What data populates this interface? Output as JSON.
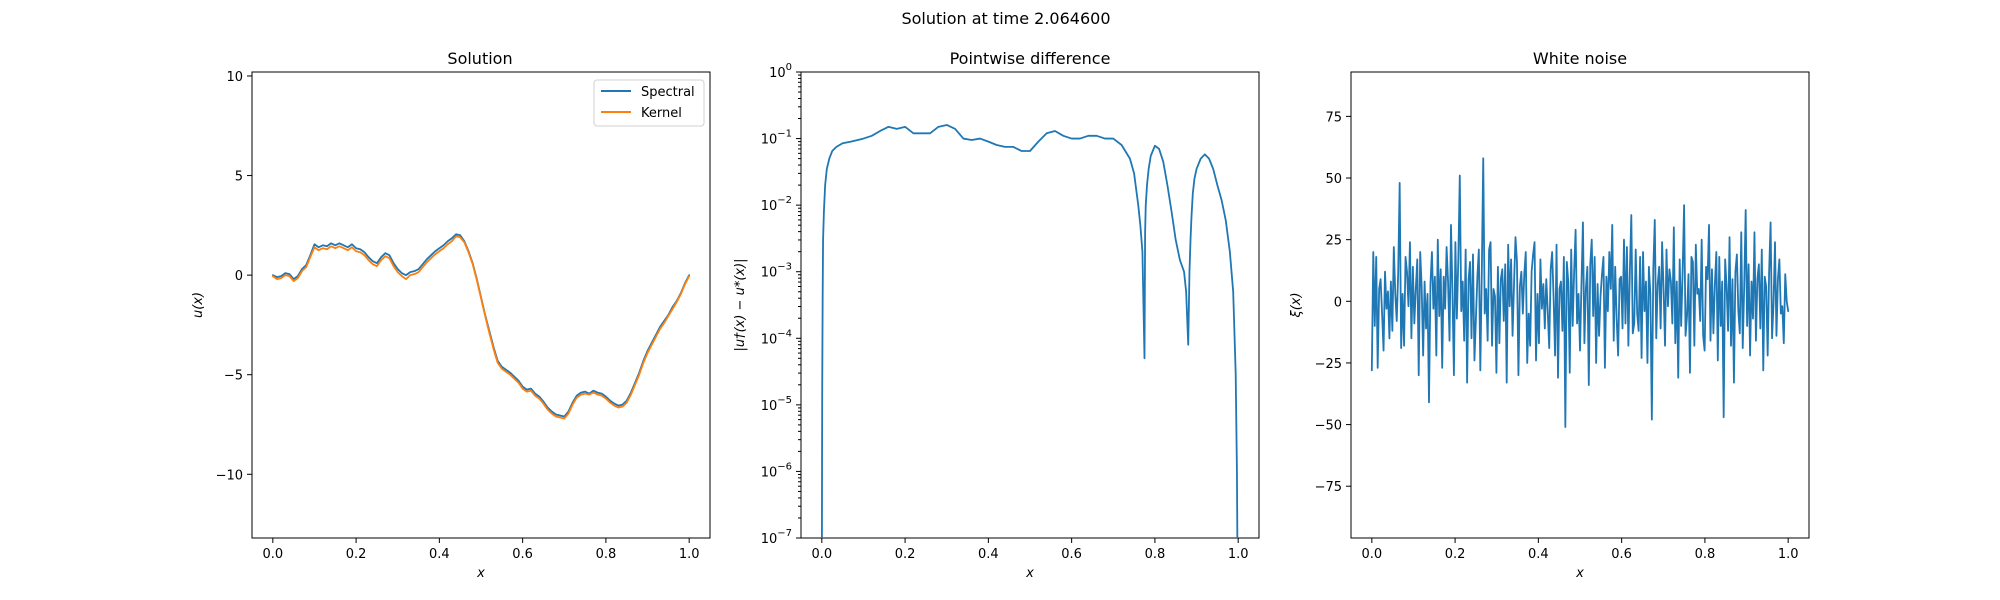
{
  "figure": {
    "suptitle": "Solution at time 2.064600"
  },
  "colors": {
    "blue": "#1f77b4",
    "orange": "#ff7f0e"
  },
  "chart_data": [
    {
      "type": "line",
      "title": "Solution",
      "xlabel": "x",
      "ylabel": "u(x)",
      "xlim": [
        -0.05,
        1.05
      ],
      "ylim": [
        -13.2,
        10.2
      ],
      "xticks": [
        0.0,
        0.2,
        0.4,
        0.6,
        0.8,
        1.0
      ],
      "xticklabels": [
        "0.0",
        "0.2",
        "0.4",
        "0.6",
        "0.8",
        "1.0"
      ],
      "yticks": [
        -10,
        -5,
        0,
        5,
        10
      ],
      "yticklabels": [
        "−10",
        "−5",
        "0",
        "5",
        "10"
      ],
      "legend": "top-right",
      "series": [
        {
          "name": "Spectral",
          "color": "#1f77b4",
          "x": [
            0.0,
            0.01,
            0.02,
            0.03,
            0.04,
            0.05,
            0.06,
            0.07,
            0.08,
            0.09,
            0.1,
            0.11,
            0.12,
            0.13,
            0.14,
            0.15,
            0.16,
            0.17,
            0.18,
            0.19,
            0.2,
            0.21,
            0.22,
            0.23,
            0.24,
            0.25,
            0.26,
            0.27,
            0.28,
            0.29,
            0.3,
            0.31,
            0.32,
            0.33,
            0.34,
            0.35,
            0.36,
            0.37,
            0.38,
            0.39,
            0.4,
            0.41,
            0.42,
            0.43,
            0.44,
            0.45,
            0.46,
            0.47,
            0.48,
            0.49,
            0.5,
            0.51,
            0.52,
            0.53,
            0.54,
            0.55,
            0.56,
            0.57,
            0.58,
            0.59,
            0.6,
            0.61,
            0.62,
            0.63,
            0.64,
            0.65,
            0.66,
            0.67,
            0.68,
            0.69,
            0.7,
            0.71,
            0.72,
            0.73,
            0.74,
            0.75,
            0.76,
            0.77,
            0.78,
            0.79,
            0.8,
            0.81,
            0.82,
            0.83,
            0.84,
            0.85,
            0.86,
            0.87,
            0.88,
            0.89,
            0.9,
            0.91,
            0.92,
            0.93,
            0.94,
            0.95,
            0.96,
            0.97,
            0.98,
            0.99,
            1.0
          ],
          "y": [
            0.0,
            -0.1,
            -0.05,
            0.1,
            0.05,
            -0.2,
            -0.05,
            0.3,
            0.5,
            1.0,
            1.55,
            1.4,
            1.5,
            1.45,
            1.6,
            1.5,
            1.6,
            1.5,
            1.4,
            1.55,
            1.35,
            1.3,
            1.15,
            0.9,
            0.7,
            0.6,
            0.9,
            1.1,
            1.0,
            0.6,
            0.3,
            0.1,
            0.0,
            0.15,
            0.2,
            0.3,
            0.55,
            0.8,
            1.0,
            1.2,
            1.35,
            1.5,
            1.7,
            1.85,
            2.05,
            2.0,
            1.7,
            1.2,
            0.6,
            -0.2,
            -1.1,
            -2.0,
            -2.8,
            -3.6,
            -4.3,
            -4.6,
            -4.75,
            -4.9,
            -5.1,
            -5.3,
            -5.6,
            -5.75,
            -5.7,
            -5.95,
            -6.1,
            -6.35,
            -6.65,
            -6.85,
            -7.0,
            -7.05,
            -7.1,
            -6.85,
            -6.4,
            -6.05,
            -5.9,
            -5.85,
            -5.95,
            -5.8,
            -5.9,
            -5.95,
            -6.1,
            -6.3,
            -6.45,
            -6.55,
            -6.5,
            -6.3,
            -5.9,
            -5.4,
            -4.9,
            -4.3,
            -3.8,
            -3.4,
            -3.0,
            -2.6,
            -2.3,
            -2.0,
            -1.6,
            -1.3,
            -0.9,
            -0.4,
            0.0
          ]
        },
        {
          "name": "Kernel",
          "color": "#ff7f0e",
          "x": [
            0.0,
            0.01,
            0.02,
            0.03,
            0.04,
            0.05,
            0.06,
            0.07,
            0.08,
            0.09,
            0.1,
            0.11,
            0.12,
            0.13,
            0.14,
            0.15,
            0.16,
            0.17,
            0.18,
            0.19,
            0.2,
            0.21,
            0.22,
            0.23,
            0.24,
            0.25,
            0.26,
            0.27,
            0.28,
            0.29,
            0.3,
            0.31,
            0.32,
            0.33,
            0.34,
            0.35,
            0.36,
            0.37,
            0.38,
            0.39,
            0.4,
            0.41,
            0.42,
            0.43,
            0.44,
            0.45,
            0.46,
            0.47,
            0.48,
            0.49,
            0.5,
            0.51,
            0.52,
            0.53,
            0.54,
            0.55,
            0.56,
            0.57,
            0.58,
            0.59,
            0.6,
            0.61,
            0.62,
            0.63,
            0.64,
            0.65,
            0.66,
            0.67,
            0.68,
            0.69,
            0.7,
            0.71,
            0.72,
            0.73,
            0.74,
            0.75,
            0.76,
            0.77,
            0.78,
            0.79,
            0.8,
            0.81,
            0.82,
            0.83,
            0.84,
            0.85,
            0.86,
            0.87,
            0.88,
            0.89,
            0.9,
            0.91,
            0.92,
            0.93,
            0.94,
            0.95,
            0.96,
            0.97,
            0.98,
            0.99,
            1.0
          ],
          "y": [
            -0.05,
            -0.2,
            -0.15,
            0.0,
            -0.05,
            -0.3,
            -0.15,
            0.2,
            0.4,
            0.9,
            1.4,
            1.25,
            1.35,
            1.3,
            1.45,
            1.35,
            1.45,
            1.35,
            1.25,
            1.4,
            1.2,
            1.15,
            1.0,
            0.75,
            0.55,
            0.45,
            0.75,
            0.95,
            0.85,
            0.45,
            0.15,
            -0.05,
            -0.2,
            0.0,
            0.05,
            0.15,
            0.4,
            0.65,
            0.85,
            1.05,
            1.2,
            1.35,
            1.55,
            1.7,
            1.95,
            1.9,
            1.65,
            1.15,
            0.55,
            -0.25,
            -1.15,
            -2.05,
            -2.9,
            -3.7,
            -4.4,
            -4.7,
            -4.85,
            -5.0,
            -5.2,
            -5.4,
            -5.7,
            -5.85,
            -5.8,
            -6.05,
            -6.2,
            -6.45,
            -6.75,
            -6.95,
            -7.1,
            -7.15,
            -7.2,
            -6.95,
            -6.5,
            -6.15,
            -6.0,
            -5.95,
            -6.0,
            -5.9,
            -6.0,
            -6.05,
            -6.2,
            -6.4,
            -6.55,
            -6.65,
            -6.6,
            -6.4,
            -6.0,
            -5.5,
            -5.0,
            -4.4,
            -3.9,
            -3.5,
            -3.1,
            -2.7,
            -2.4,
            -2.05,
            -1.7,
            -1.35,
            -0.95,
            -0.45,
            -0.05
          ]
        }
      ]
    },
    {
      "type": "line",
      "title": "Pointwise difference",
      "xlabel": "x",
      "ylabel": "|u†(x) − u*(x)|",
      "xlim": [
        -0.05,
        1.05
      ],
      "yscale": "log",
      "ylim_log10": [
        -7,
        0
      ],
      "xticks": [
        0.0,
        0.2,
        0.4,
        0.6,
        0.8,
        1.0
      ],
      "xticklabels": [
        "0.0",
        "0.2",
        "0.4",
        "0.6",
        "0.8",
        "1.0"
      ],
      "yticks_log10": [
        -7,
        -6,
        -5,
        -4,
        -3,
        -2,
        -1,
        0
      ],
      "yticklabels": [
        {
          "base": "10",
          "exp": "−7"
        },
        {
          "base": "10",
          "exp": "−6"
        },
        {
          "base": "10",
          "exp": "−5"
        },
        {
          "base": "10",
          "exp": "−4"
        },
        {
          "base": "10",
          "exp": "−3"
        },
        {
          "base": "10",
          "exp": "−2"
        },
        {
          "base": "10",
          "exp": "−1"
        },
        {
          "base": "10",
          "exp": "0"
        }
      ],
      "series": [
        {
          "color": "#1f77b4",
          "x": [
            0.0,
            0.0005,
            0.001,
            0.002,
            0.003,
            0.005,
            0.008,
            0.012,
            0.018,
            0.025,
            0.035,
            0.05,
            0.07,
            0.1,
            0.12,
            0.14,
            0.16,
            0.18,
            0.2,
            0.22,
            0.24,
            0.26,
            0.28,
            0.3,
            0.32,
            0.34,
            0.36,
            0.38,
            0.4,
            0.42,
            0.44,
            0.46,
            0.48,
            0.5,
            0.52,
            0.54,
            0.56,
            0.58,
            0.6,
            0.62,
            0.64,
            0.66,
            0.68,
            0.7,
            0.72,
            0.74,
            0.75,
            0.76,
            0.765,
            0.77,
            0.775,
            0.7765,
            0.778,
            0.781,
            0.785,
            0.79,
            0.8,
            0.81,
            0.82,
            0.83,
            0.84,
            0.85,
            0.86,
            0.87,
            0.875,
            0.88,
            0.883,
            0.8855,
            0.888,
            0.891,
            0.895,
            0.9,
            0.91,
            0.92,
            0.93,
            0.94,
            0.95,
            0.96,
            0.97,
            0.98,
            0.988,
            0.994,
            0.997,
            0.999,
            1.0
          ],
          "y": [
            1e-08,
            1e-06,
            2e-05,
            0.0004,
            0.003,
            0.008,
            0.02,
            0.035,
            0.05,
            0.065,
            0.075,
            0.085,
            0.09,
            0.1,
            0.11,
            0.13,
            0.15,
            0.14,
            0.15,
            0.12,
            0.12,
            0.12,
            0.15,
            0.16,
            0.14,
            0.1,
            0.095,
            0.1,
            0.09,
            0.08,
            0.075,
            0.075,
            0.065,
            0.065,
            0.09,
            0.12,
            0.13,
            0.11,
            0.1,
            0.1,
            0.11,
            0.11,
            0.1,
            0.1,
            0.08,
            0.05,
            0.03,
            0.01,
            0.005,
            0.002,
            5e-05,
            0.004,
            0.01,
            0.02,
            0.035,
            0.055,
            0.078,
            0.07,
            0.045,
            0.02,
            0.008,
            0.003,
            0.0015,
            0.001,
            0.0005,
            8e-05,
            0.001,
            0.003,
            0.007,
            0.015,
            0.025,
            0.035,
            0.05,
            0.058,
            0.05,
            0.035,
            0.02,
            0.012,
            0.006,
            0.002,
            0.0005,
            3e-05,
            1e-06,
            1e-08,
            1e-08
          ]
        }
      ]
    },
    {
      "type": "line",
      "title": "White noise",
      "xlabel": "x",
      "ylabel": "ξ(x)",
      "xlim": [
        -0.05,
        1.05
      ],
      "ylim": [
        -96,
        93
      ],
      "xticks": [
        0.0,
        0.2,
        0.4,
        0.6,
        0.8,
        1.0
      ],
      "xticklabels": [
        "0.0",
        "0.2",
        "0.4",
        "0.6",
        "0.8",
        "1.0"
      ],
      "yticks": [
        -75,
        -50,
        -25,
        0,
        25,
        50,
        75
      ],
      "yticklabels": [
        "−75",
        "−50",
        "−25",
        "0",
        "25",
        "50",
        "75"
      ],
      "series": [
        {
          "color": "#1f77b4",
          "x_start": 0.0,
          "x_end": 1.0,
          "y": [
            -28,
            20,
            -10,
            18,
            -27,
            5,
            9,
            -5,
            -20,
            12,
            -3,
            4,
            -15,
            8,
            -12,
            22,
            3,
            -8,
            12,
            48,
            -19,
            3,
            -18,
            18,
            12,
            -2,
            24,
            -15,
            14,
            -9,
            5,
            17,
            -30,
            20,
            6,
            -22,
            8,
            -11,
            3,
            -41,
            7,
            20,
            -3,
            10,
            -22,
            25,
            -6,
            13,
            -27,
            10,
            -3,
            22,
            8,
            -16,
            31,
            4,
            -30,
            24,
            -7,
            17,
            51,
            -4,
            8,
            -16,
            21,
            -33,
            9,
            16,
            -15,
            19,
            -24,
            -7,
            10,
            21,
            -28,
            11,
            58,
            -5,
            5,
            -16,
            21,
            24,
            -18,
            5,
            2,
            -29,
            14,
            -17,
            9,
            13,
            -8,
            15,
            -33,
            23,
            -2,
            17,
            -14,
            7,
            26,
            16,
            -30,
            6,
            12,
            -5,
            11,
            20,
            -25,
            -5,
            -18,
            12,
            19,
            24,
            -24,
            3,
            -17,
            17,
            -3,
            7,
            -11,
            9,
            -4,
            -19,
            13,
            20,
            1,
            -22,
            23,
            -31,
            5,
            8,
            -12,
            18,
            -51,
            16,
            8,
            -29,
            21,
            -10,
            12,
            29,
            -9,
            3,
            -20,
            7,
            32,
            -17,
            5,
            14,
            -34,
            15,
            25,
            -6,
            18,
            -25,
            7,
            -14,
            2,
            11,
            18,
            -27,
            10,
            -4,
            20,
            5,
            31,
            -16,
            14,
            -7,
            -22,
            9,
            10,
            -11,
            25,
            -9,
            22,
            -18,
            12,
            35,
            -13,
            -9,
            21,
            -5,
            -12,
            18,
            -23,
            20,
            -4,
            8,
            -25,
            14,
            3,
            -48,
            13,
            33,
            -15,
            7,
            14,
            -11,
            24,
            5,
            -18,
            21,
            -2,
            13,
            8,
            -9,
            30,
            -17,
            8,
            -31,
            17,
            -10,
            12,
            39,
            -14,
            -6,
            11,
            -29,
            18,
            16,
            -18,
            23,
            3,
            5,
            -8,
            25,
            -14,
            -20,
            14,
            9,
            31,
            -16,
            13,
            -13,
            7,
            20,
            -24,
            18,
            -10,
            8,
            -47,
            17,
            6,
            -12,
            26,
            -18,
            9,
            -33,
            12,
            19,
            -4,
            -13,
            28,
            -19,
            6,
            37,
            -10,
            15,
            -22,
            8,
            -7,
            28,
            -16,
            9,
            15,
            -11,
            21,
            -28,
            10,
            6,
            -22,
            12,
            32,
            -15,
            -1,
            24,
            -14,
            9,
            17,
            -5,
            -2,
            -17,
            11,
            0,
            -4
          ]
        }
      ]
    }
  ]
}
